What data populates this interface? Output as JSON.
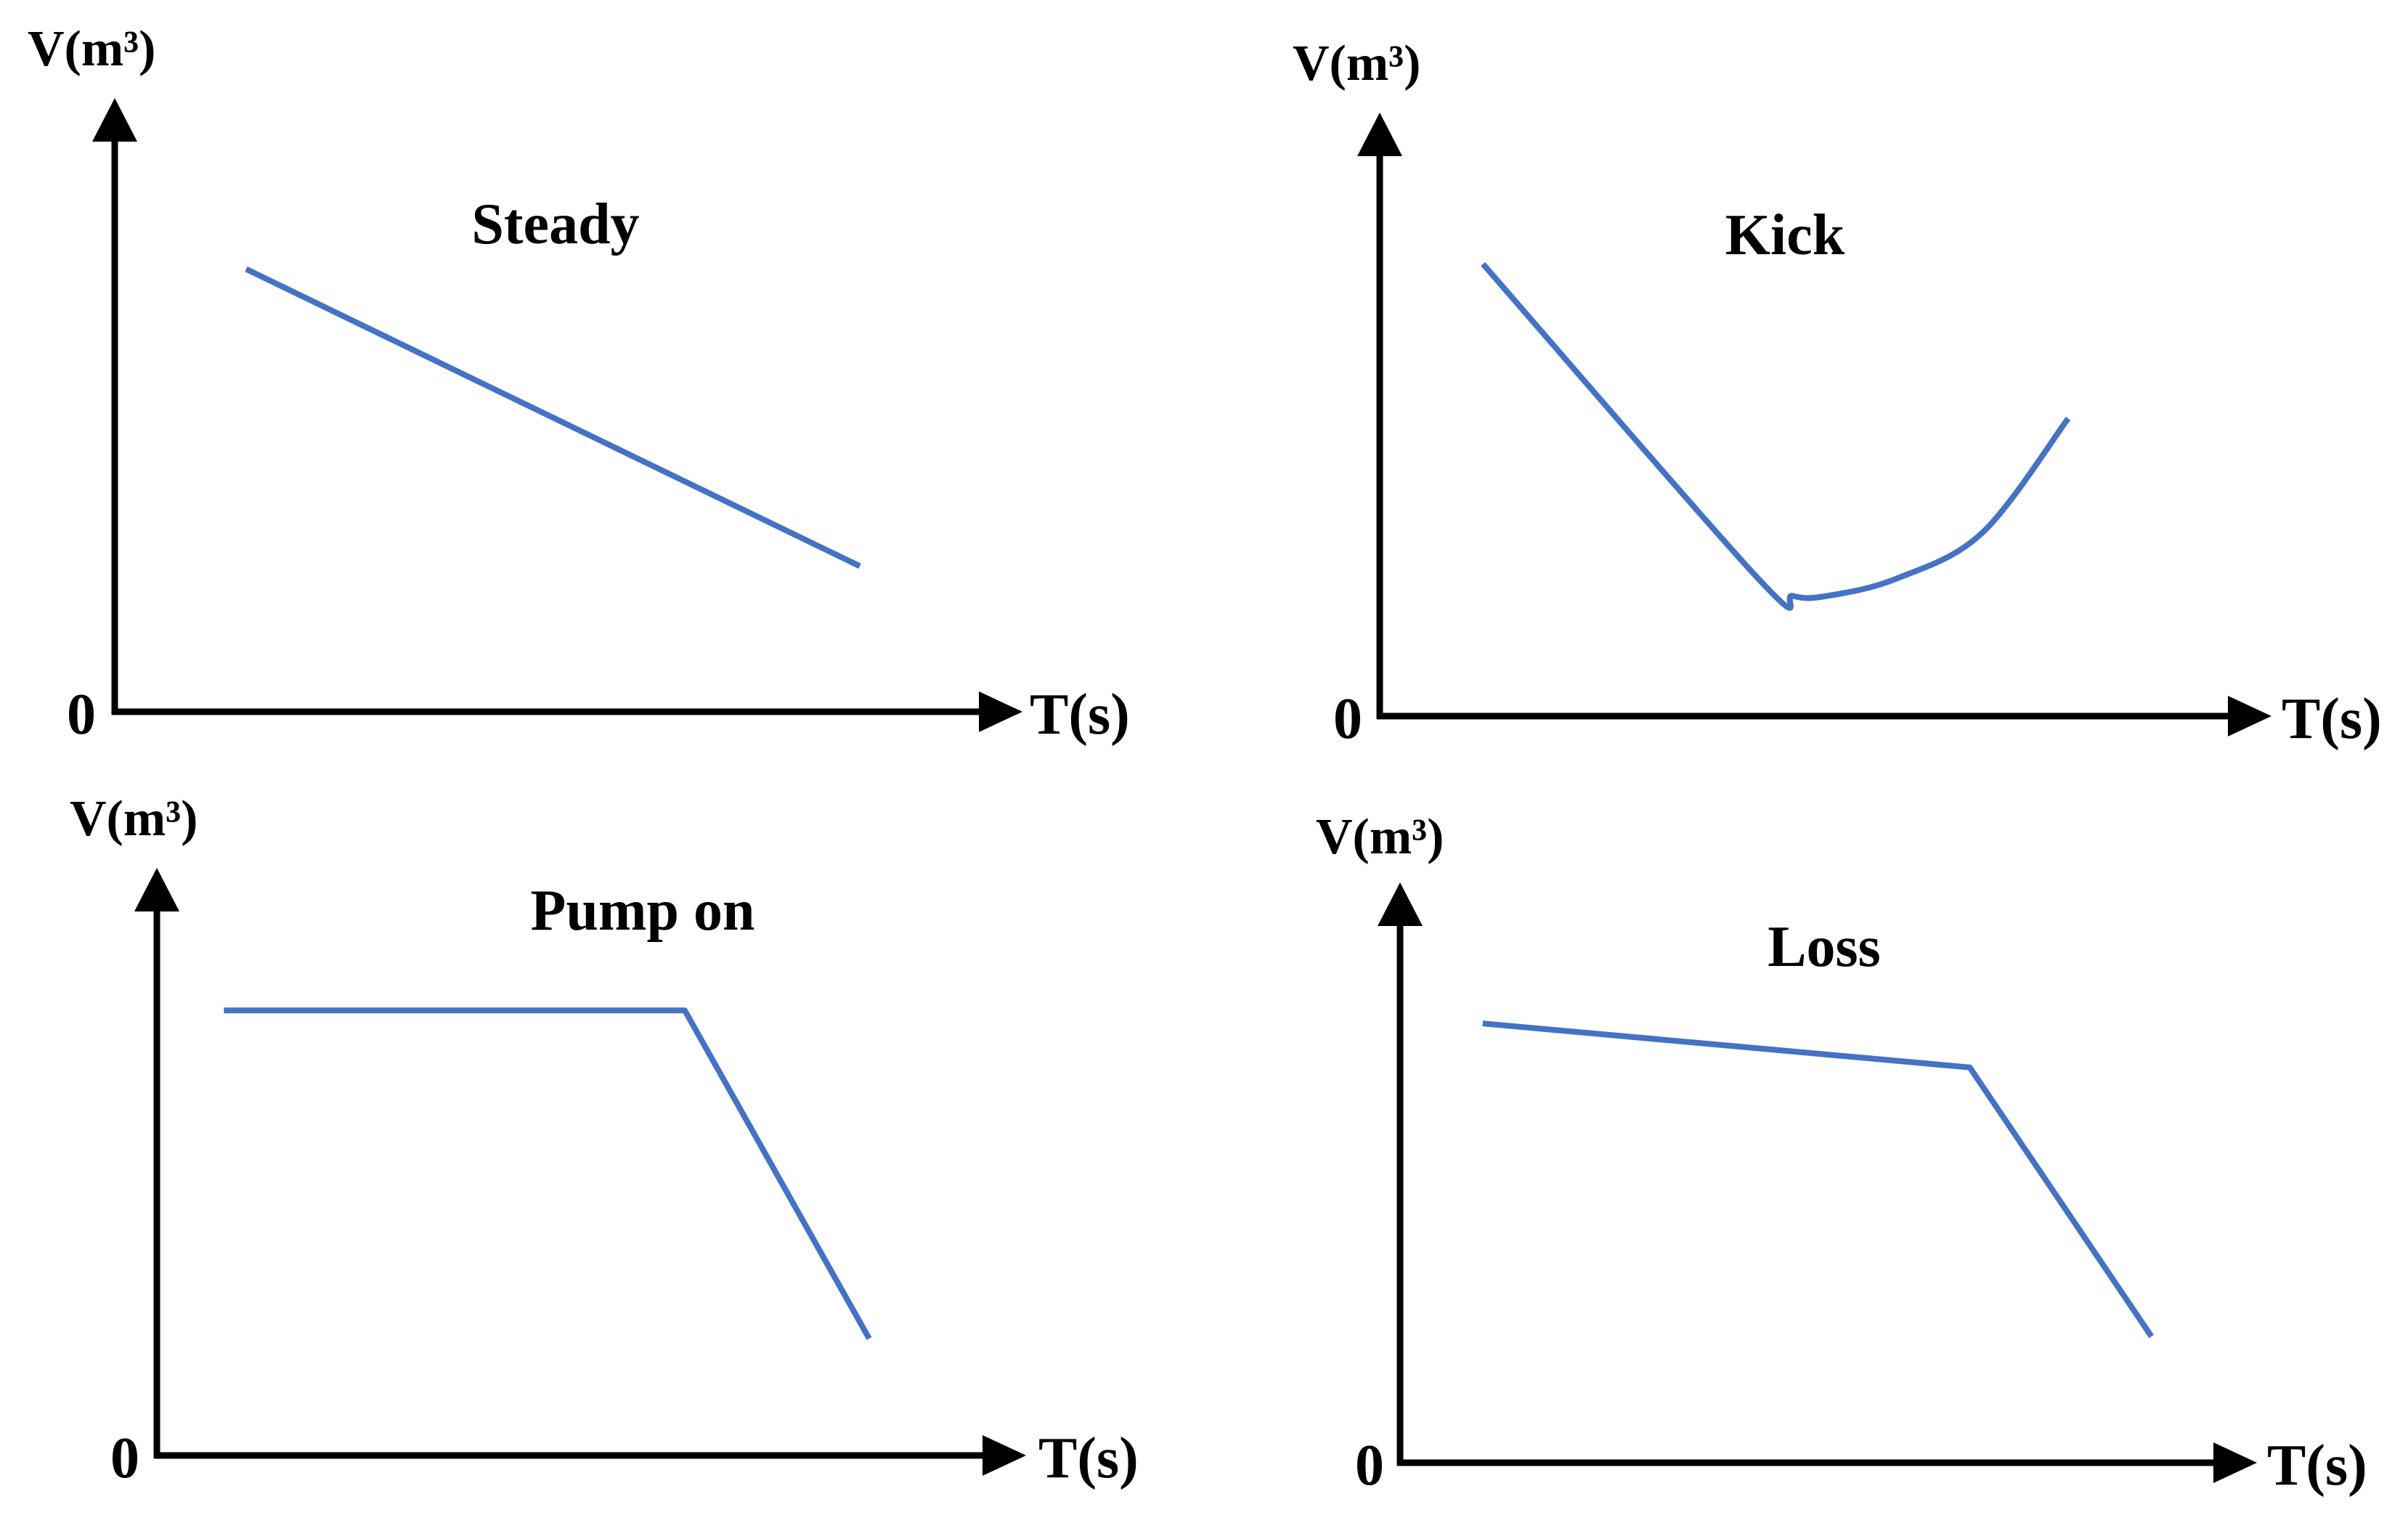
{
  "chart_data": [
    {
      "type": "line",
      "title": "Steady",
      "xlabel": "T(s)",
      "ylabel": "V(m³)",
      "origin_label": "0",
      "xlim": [
        0,
        10
      ],
      "ylim": [
        0,
        10
      ],
      "series": [
        {
          "name": "Steady",
          "x": [
            1.5,
            8.5
          ],
          "y": [
            7.6,
            2.5
          ]
        }
      ],
      "curve": "linear"
    },
    {
      "type": "line",
      "title": "Kick",
      "xlabel": "T(s)",
      "ylabel": "V(m³)",
      "origin_label": "0",
      "xlim": [
        0,
        10
      ],
      "ylim": [
        0,
        10
      ],
      "series": [
        {
          "name": "Kick",
          "x": [
            1.2,
            4.4,
            4.8,
            5.2,
            6.0,
            7.0,
            8.0
          ],
          "y": [
            7.9,
            2.4,
            2.1,
            2.1,
            2.4,
            3.2,
            5.2
          ]
        }
      ],
      "curve": "smooth"
    },
    {
      "type": "line",
      "title": "Pump on",
      "xlabel": "T(s)",
      "ylabel": "V(m³)",
      "origin_label": "0",
      "xlim": [
        0,
        10
      ],
      "ylim": [
        0,
        10
      ],
      "series": [
        {
          "name": "Pump on",
          "x": [
            0.8,
            6.3,
            8.5
          ],
          "y": [
            8.0,
            8.0,
            2.1
          ]
        }
      ],
      "curve": "linear"
    },
    {
      "type": "line",
      "title": "Loss",
      "xlabel": "T(s)",
      "ylabel": "V(m³)",
      "origin_label": "0",
      "xlim": [
        0,
        10
      ],
      "ylim": [
        0,
        10
      ],
      "series": [
        {
          "name": "Loss",
          "x": [
            1.0,
            6.9,
            9.1
          ],
          "y": [
            8.0,
            7.2,
            2.3
          ]
        }
      ],
      "curve": "linear"
    }
  ],
  "colors": {
    "series": "#4472C4",
    "axis": "#000000"
  }
}
